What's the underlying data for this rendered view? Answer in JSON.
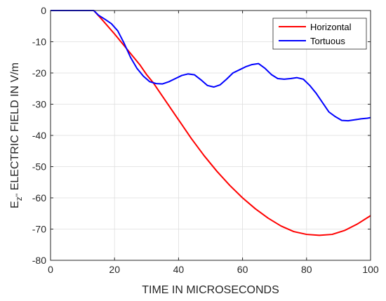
{
  "chart_data": {
    "type": "line",
    "xlabel": "TIME IN MICROSECONDS",
    "ylabel": {
      "main": "E",
      "sub": "z''",
      "rest": " ELECTRIC FIELD IN V/m"
    },
    "xlim": [
      0,
      100
    ],
    "ylim": [
      -80,
      0
    ],
    "xticks": [
      0,
      20,
      40,
      60,
      80,
      100
    ],
    "yticks": [
      0,
      -10,
      -20,
      -30,
      -40,
      -50,
      -60,
      -70,
      -80
    ],
    "grid": true,
    "legend_position": "top-right",
    "series": [
      {
        "name": "Horizontal",
        "color": "#ff0000",
        "x": [
          0,
          13.5,
          16,
          20,
          24,
          28,
          30,
          32,
          36,
          40,
          44,
          48,
          52,
          56,
          60,
          64,
          68,
          72,
          76,
          80,
          84,
          88,
          92,
          96,
          100
        ],
        "y": [
          0,
          0,
          -2.8,
          -7.5,
          -12.5,
          -17.5,
          -20.5,
          -23,
          -29,
          -35,
          -41,
          -46.5,
          -51.5,
          -56,
          -60,
          -63.5,
          -66.5,
          -69,
          -70.8,
          -71.7,
          -72,
          -71.7,
          -70.4,
          -68.3,
          -65.7
        ]
      },
      {
        "name": "Tortuous",
        "color": "#0000ff",
        "x": [
          0,
          13.5,
          15,
          17,
          19,
          21,
          23,
          25,
          27,
          29,
          31,
          33,
          35,
          37,
          39,
          41,
          43,
          45,
          47,
          49,
          51,
          53,
          55,
          57,
          59,
          61,
          63,
          65,
          67,
          69,
          71,
          73,
          75,
          77,
          79,
          81,
          83,
          85,
          87,
          89,
          91,
          93,
          95,
          97,
          99,
          100
        ],
        "y": [
          0,
          0,
          -1.5,
          -2.8,
          -4.2,
          -6.5,
          -10.5,
          -15,
          -18.5,
          -21,
          -22.8,
          -23.4,
          -23.5,
          -22.8,
          -21.8,
          -20.8,
          -20.3,
          -20.6,
          -22.2,
          -24,
          -24.5,
          -23.8,
          -22,
          -20,
          -19,
          -18,
          -17.3,
          -17,
          -18.5,
          -20.5,
          -21.8,
          -22,
          -21.8,
          -21.5,
          -22,
          -24,
          -26.5,
          -29.5,
          -32.5,
          -34,
          -35.2,
          -35.3,
          -35,
          -34.7,
          -34.5,
          -34.3
        ]
      }
    ]
  }
}
